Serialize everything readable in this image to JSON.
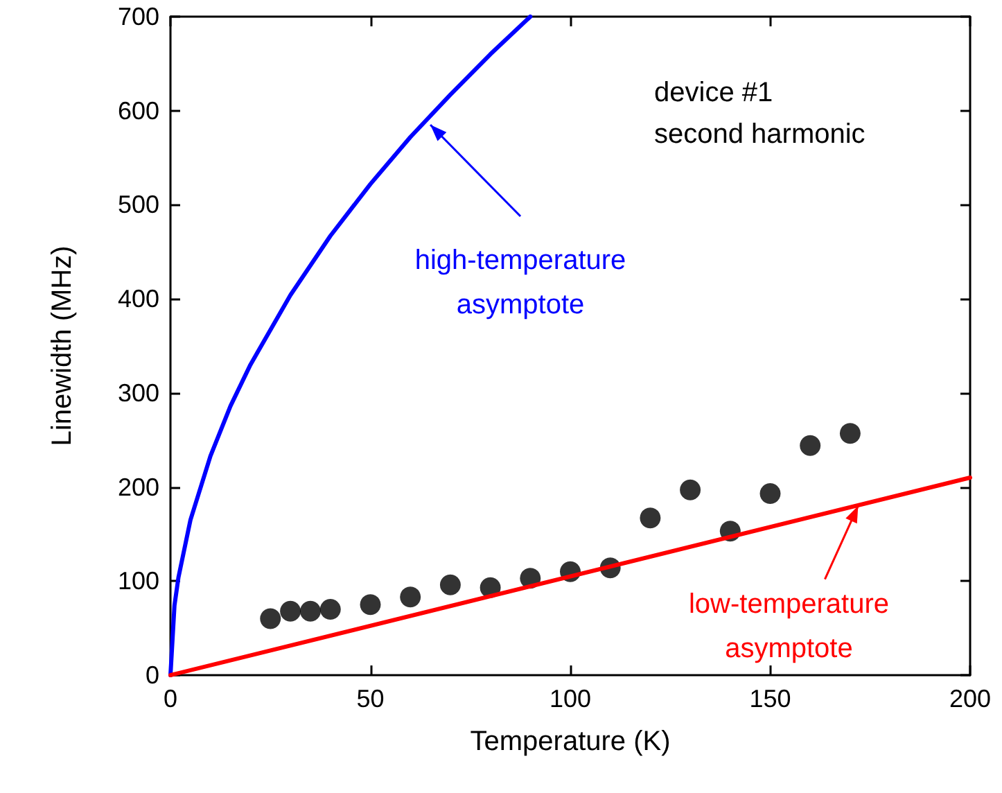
{
  "chart_data": {
    "type": "scatter",
    "xlabel": "Temperature (K)",
    "ylabel": "Linewidth (MHz)",
    "xlim": [
      0,
      200
    ],
    "xticks": [
      0,
      50,
      100,
      150,
      200
    ],
    "ylim": [
      0,
      700
    ],
    "yticks": [
      0,
      100,
      200,
      300,
      400,
      500,
      600,
      700
    ],
    "grid": false,
    "marker": "circle",
    "series": [
      {
        "color": "#000000",
        "x": [
          25,
          30,
          35,
          40,
          50,
          60,
          70,
          80,
          90,
          100,
          110,
          120,
          130,
          140,
          150,
          160,
          170
        ],
        "values": [
          60,
          68,
          68,
          70,
          75,
          83,
          96,
          93,
          103,
          110,
          114,
          167,
          197,
          153,
          193,
          244,
          257
        ]
      },
      {
        "type": "line",
        "marker": "none",
        "color": "#0000ff",
        "x": [
          0,
          1,
          2,
          5,
          10,
          15,
          20,
          30,
          40,
          50,
          60,
          70,
          80,
          90
        ],
        "values": [
          0,
          74,
          104,
          165,
          233,
          286,
          330,
          404,
          467,
          522,
          572,
          617,
          660,
          700
        ]
      },
      {
        "type": "line",
        "marker": "none",
        "color": "#ff0000",
        "x": [
          0,
          200
        ],
        "values": [
          0,
          210
        ]
      }
    ],
    "annotations": [
      "device #1\nsecond harmonic",
      {
        "text": "high-temperature\nasymptote",
        "x": 65,
        "y": 585
      },
      {
        "text": "low-temperature\nasymptote",
        "x": 172,
        "y": 180
      }
    ]
  }
}
